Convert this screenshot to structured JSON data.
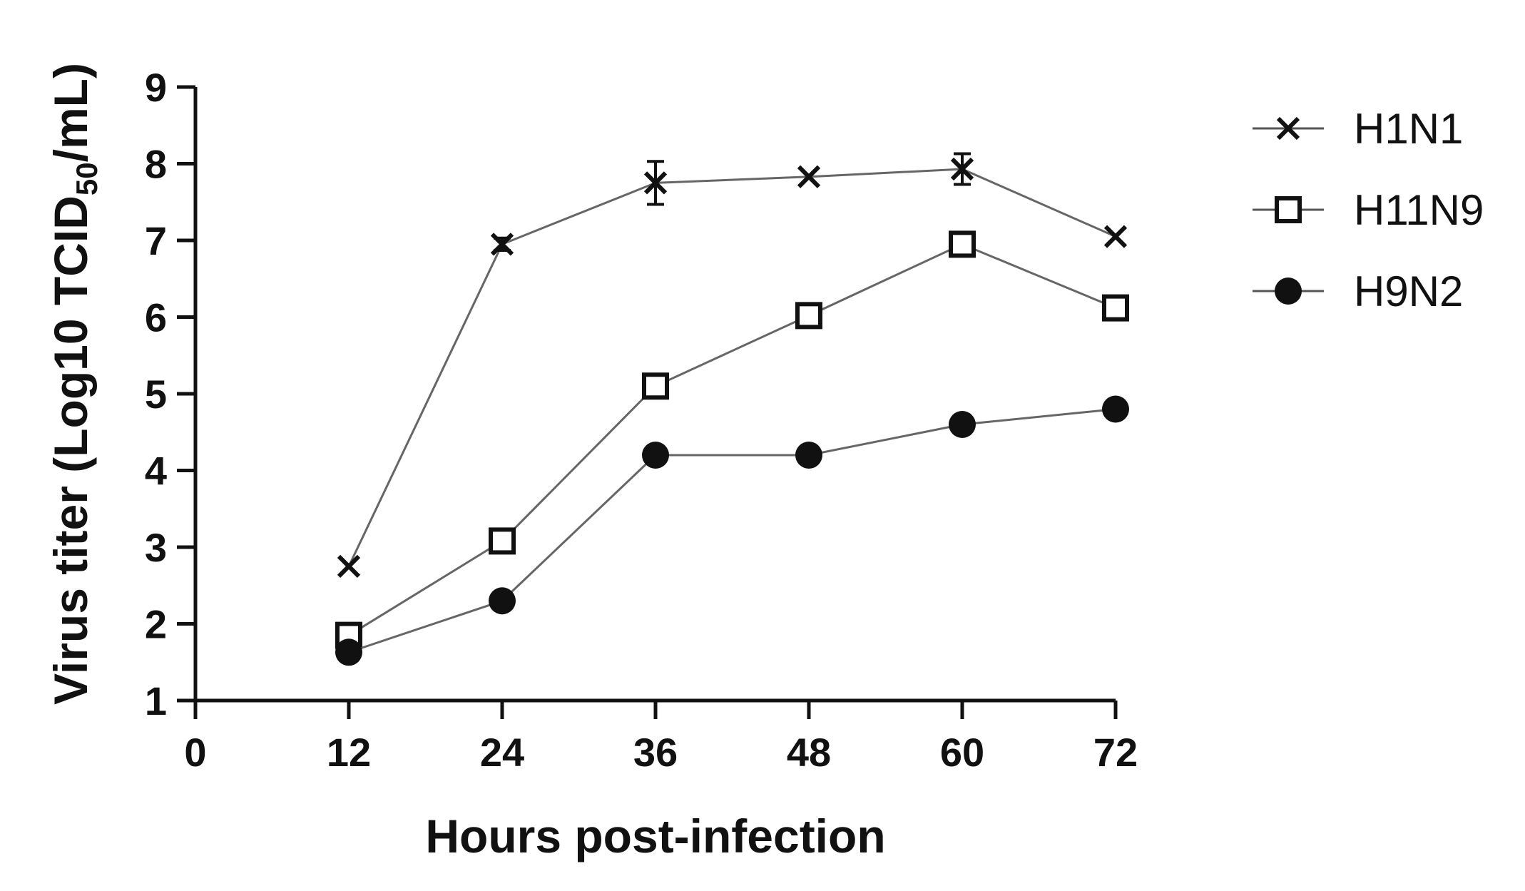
{
  "chart_data": {
    "type": "line",
    "xlabel": "Hours post-infection",
    "ylabel": {
      "prefix": "Virus titer (Log10 TCID",
      "subscript": "50",
      "suffix": "/mL)"
    },
    "x": [
      12,
      24,
      36,
      48,
      60,
      72
    ],
    "xlim": [
      0,
      72
    ],
    "ylim": [
      1,
      9
    ],
    "x_ticks": [
      0,
      12,
      24,
      36,
      48,
      60,
      72
    ],
    "y_ticks": [
      1,
      2,
      3,
      4,
      5,
      6,
      7,
      8,
      9
    ],
    "grid": false,
    "legend_position": "top-right",
    "series": [
      {
        "name": "H1N1",
        "marker": "x",
        "values": [
          2.75,
          6.95,
          7.75,
          7.83,
          7.93,
          7.05
        ],
        "errors": [
          0,
          0.08,
          0.28,
          0,
          0.2,
          0
        ]
      },
      {
        "name": "H11N9",
        "marker": "open-square",
        "values": [
          1.85,
          3.08,
          5.1,
          6.02,
          6.95,
          6.12
        ],
        "errors": [
          0,
          0,
          0,
          0,
          0.08,
          0
        ]
      },
      {
        "name": "H9N2",
        "marker": "filled-circle",
        "values": [
          1.63,
          2.3,
          4.2,
          4.2,
          4.6,
          4.8
        ],
        "errors": [
          0,
          0,
          0,
          0.08,
          0.12,
          0
        ]
      }
    ]
  }
}
